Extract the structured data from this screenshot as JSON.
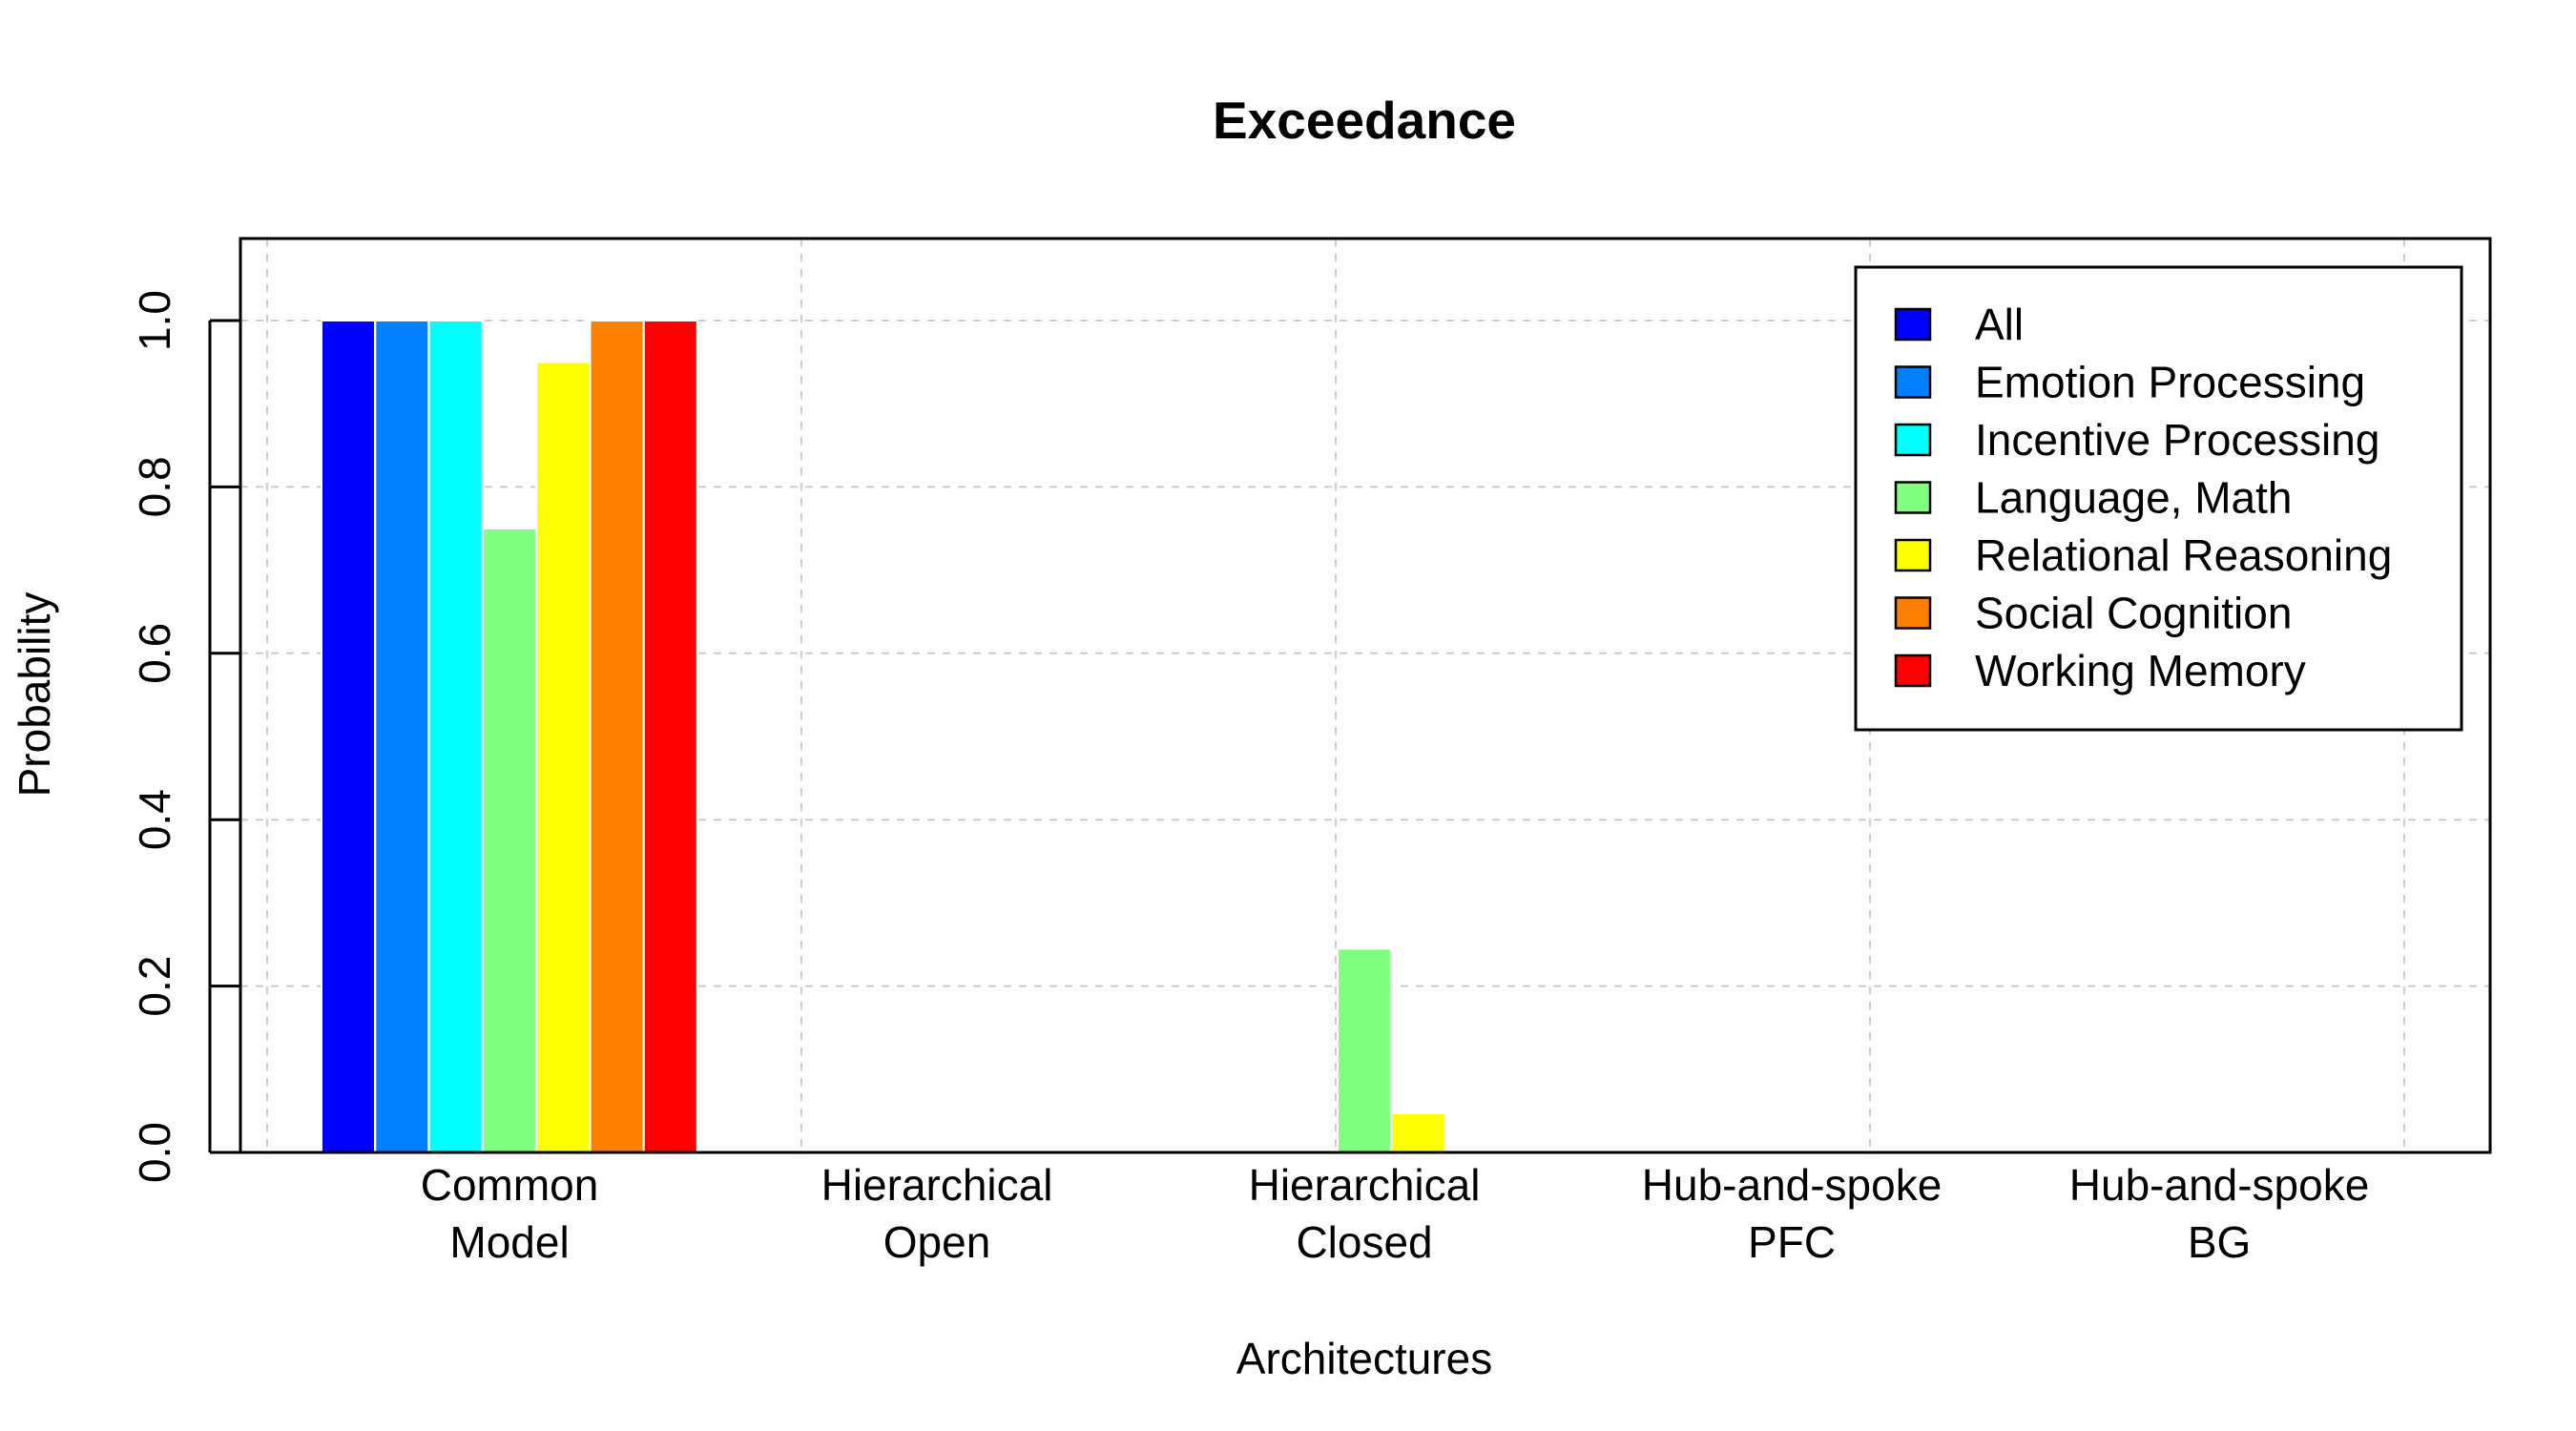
{
  "chart_data": {
    "type": "bar",
    "title": "Exceedance",
    "xlabel": "Architectures",
    "ylabel": "Probability",
    "ylim": [
      0,
      1.1
    ],
    "yticks": [
      "0.0",
      "0.2",
      "0.4",
      "0.6",
      "0.8",
      "1.0"
    ],
    "grid": true,
    "legend_position": "top-right",
    "categories": [
      [
        "Common",
        "Model"
      ],
      [
        "Hierarchical",
        "Open"
      ],
      [
        "Hierarchical",
        "Closed"
      ],
      [
        "Hub-and-spoke",
        "PFC"
      ],
      [
        "Hub-and-spoke",
        "BG"
      ]
    ],
    "series": [
      {
        "name": "All",
        "color": "#0000FF",
        "values": [
          1.0,
          0,
          0,
          0,
          0
        ]
      },
      {
        "name": "Emotion Processing",
        "color": "#0080FF",
        "values": [
          1.0,
          0,
          0,
          0,
          0
        ]
      },
      {
        "name": "Incentive Processing",
        "color": "#00FFFF",
        "values": [
          1.0,
          0,
          0,
          0,
          0
        ]
      },
      {
        "name": "Language, Math",
        "color": "#80FF80",
        "values": [
          0.75,
          0,
          0.245,
          0,
          0
        ]
      },
      {
        "name": "Relational Reasoning",
        "color": "#FFFF00",
        "values": [
          0.95,
          0,
          0.047,
          0,
          0
        ]
      },
      {
        "name": "Social Cognition",
        "color": "#FF8000",
        "values": [
          1.0,
          0,
          0,
          0,
          0
        ]
      },
      {
        "name": "Working Memory",
        "color": "#FF0000",
        "values": [
          1.0,
          0,
          0,
          0,
          0
        ]
      }
    ]
  }
}
